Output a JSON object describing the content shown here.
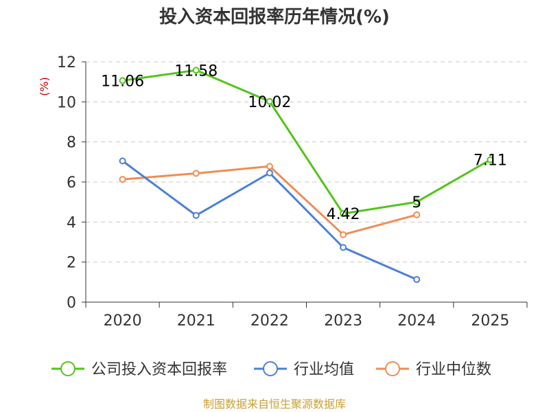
{
  "chart_data": {
    "type": "line",
    "title": "投入资本回报率历年情况(%)",
    "ylabel": "(%)",
    "xlabel": "",
    "categories": [
      "2020",
      "2021",
      "2022",
      "2023",
      "2024",
      "2025"
    ],
    "ylim": [
      0,
      12
    ],
    "yticks": [
      0,
      2,
      4,
      6,
      8,
      10,
      12
    ],
    "grid": true,
    "legend_position": "bottom",
    "series": [
      {
        "name": "公司投入资本回报率",
        "color": "#52c41a",
        "values": [
          11.06,
          11.58,
          10.02,
          4.42,
          5,
          7.11
        ],
        "labels": [
          "11.06",
          "11.58",
          "10.02",
          "4.42",
          "5",
          "7.11"
        ]
      },
      {
        "name": "行业均值",
        "color": "#4a7fd9",
        "values": [
          7.05,
          4.33,
          6.45,
          2.73,
          1.13,
          null
        ]
      },
      {
        "name": "行业中位数",
        "color": "#f08c55",
        "values": [
          6.13,
          6.43,
          6.78,
          3.37,
          4.36,
          null
        ]
      }
    ]
  },
  "source": "制图数据来自恒生聚源数据库"
}
